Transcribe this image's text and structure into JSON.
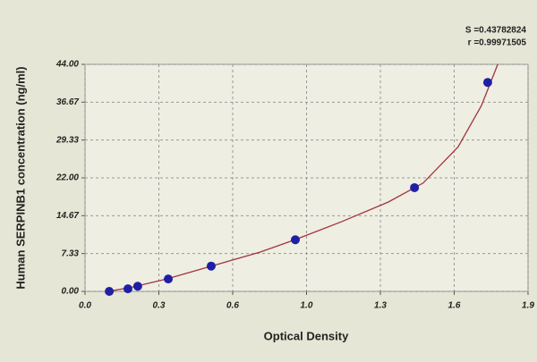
{
  "chart_data": {
    "type": "scatter",
    "x_label": "Optical Density",
    "y_label": "Human SERPINB1 concentration (ng/ml)",
    "annotations": [
      "S =0.43782824",
      "r =0.99971505"
    ],
    "xlim": [
      0,
      1.9
    ],
    "ylim": [
      0,
      44
    ],
    "xticks": [
      {
        "value": 0,
        "label": "0.0"
      },
      {
        "value": 0.3167,
        "label": "0.3"
      },
      {
        "value": 0.6333,
        "label": "0.6"
      },
      {
        "value": 0.95,
        "label": "1.0"
      },
      {
        "value": 1.2667,
        "label": "1.3"
      },
      {
        "value": 1.5833,
        "label": "1.6"
      },
      {
        "value": 1.9,
        "label": "1.9"
      }
    ],
    "yticks": [
      {
        "value": 0,
        "label": "0.00"
      },
      {
        "value": 7.33,
        "label": "7.33"
      },
      {
        "value": 14.67,
        "label": "14.67"
      },
      {
        "value": 22,
        "label": "22.00"
      },
      {
        "value": 29.33,
        "label": "29.33"
      },
      {
        "value": 36.67,
        "label": "36.67"
      },
      {
        "value": 44,
        "label": "44.00"
      }
    ],
    "grid": true,
    "series": [
      {
        "kind": "line",
        "color": "#a3343c",
        "x": [
          0.1,
          0.2,
          0.35,
          0.55,
          0.75,
          0.9,
          1.1,
          1.3,
          1.45,
          1.6,
          1.7,
          1.77
        ],
        "values": [
          0,
          0.8,
          2.4,
          5,
          7.6,
          10,
          13.5,
          17.3,
          21,
          28,
          36,
          44
        ]
      },
      {
        "kind": "points",
        "color": "#1f1fa6",
        "x": [
          0.104,
          0.184,
          0.226,
          0.357,
          0.541,
          0.902,
          1.413,
          1.727
        ],
        "values": [
          0,
          0.5,
          1.0,
          2.4,
          4.9,
          10.0,
          20.1,
          40.5
        ]
      }
    ]
  }
}
